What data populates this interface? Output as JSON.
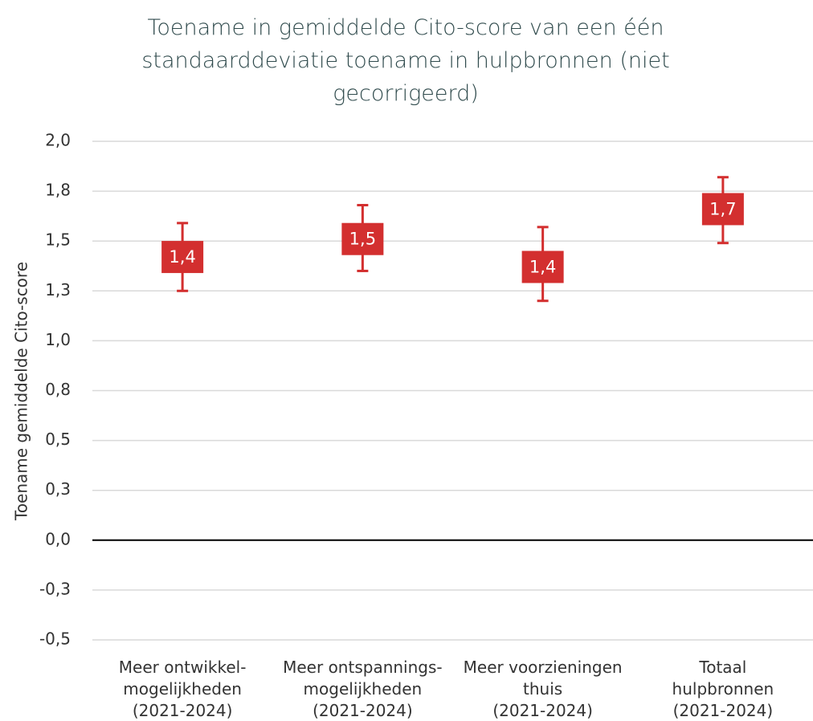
{
  "chart_data": {
    "type": "errorbar",
    "title": "Toename in gemiddelde Cito-score van een één standaarddeviatie toename in hulpbronnen (niet gecorrigeerd)",
    "ylabel": "Toename gemiddelde Cito-score",
    "categories": [
      [
        "Meer ontwikkel-",
        "mogelijkheden",
        "(2021-2024)"
      ],
      [
        "Meer ontspannings-",
        "mogelijkheden",
        "(2021-2024)"
      ],
      [
        "Meer voorzieningen",
        "thuis",
        "(2021-2024)"
      ],
      [
        "Totaal",
        "hulpbronnen",
        "(2021-2024)"
      ]
    ],
    "values": [
      1.42,
      1.51,
      1.37,
      1.66
    ],
    "value_labels": [
      "1,4",
      "1,5",
      "1,4",
      "1,7"
    ],
    "ci_lower": [
      1.25,
      1.35,
      1.2,
      1.49
    ],
    "ci_upper": [
      1.59,
      1.68,
      1.57,
      1.82
    ],
    "color": "#d32f2f",
    "ylim": [
      -0.5,
      2.0
    ],
    "yticks": [
      {
        "value": -0.5,
        "label": "-0,5"
      },
      {
        "value": -0.25,
        "label": "-0,3"
      },
      {
        "value": 0,
        "label": "0,0"
      },
      {
        "value": 0.25,
        "label": "0,3"
      },
      {
        "value": 0.5,
        "label": "0,5"
      },
      {
        "value": 0.75,
        "label": "0,8"
      },
      {
        "value": 1.0,
        "label": "1,0"
      },
      {
        "value": 1.25,
        "label": "1,3"
      },
      {
        "value": 1.5,
        "label": "1,5"
      },
      {
        "value": 1.75,
        "label": "1,8"
      },
      {
        "value": 2.0,
        "label": "2,0"
      }
    ],
    "grid": true
  }
}
